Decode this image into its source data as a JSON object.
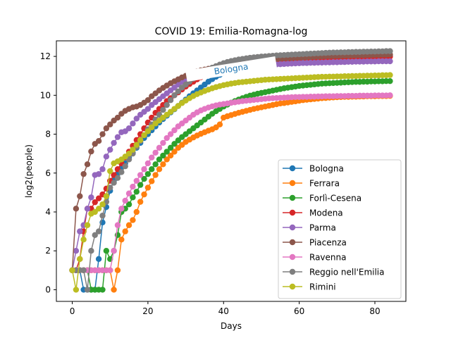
{
  "chart_data": {
    "type": "line",
    "title": "COVID 19: Emilia-Romagna-log",
    "xlabel": "Days",
    "ylabel": "log2(people)",
    "xlim": [
      -4.2,
      88.2
    ],
    "ylim": [
      -0.6,
      12.8
    ],
    "xticks": [
      0,
      20,
      40,
      60,
      80
    ],
    "yticks": [
      0,
      2,
      4,
      6,
      8,
      10,
      12
    ],
    "grid": false,
    "legend_position": "lower-right",
    "annotation": {
      "text": "Bologna",
      "x": 42,
      "y": 11.35,
      "rotation": -9,
      "color": "#1f77b4"
    },
    "series": [
      {
        "name": "Bologna",
        "color": "#1f77b4",
        "start": 0,
        "values": [
          1,
          1,
          1,
          0,
          0,
          0,
          0,
          1.58,
          3.46,
          4.25,
          5.09,
          5.61,
          5.95,
          6.27,
          6.5,
          6.8,
          7.05,
          7.3,
          7.55,
          7.8,
          8.0,
          8.2,
          8.4,
          8.6,
          8.78,
          8.95,
          9.12,
          9.28,
          9.45,
          9.62,
          9.78,
          9.95,
          10.1,
          10.25,
          10.4,
          10.55,
          10.7,
          10.83,
          10.95,
          11.05,
          11.15,
          11.23,
          11.3,
          11.37,
          11.43,
          11.48,
          11.52,
          11.56,
          11.6,
          11.63,
          11.66,
          11.69,
          11.72,
          11.75,
          11.77,
          11.79,
          11.81,
          11.83,
          11.85,
          11.86,
          11.88,
          11.89,
          11.9,
          11.91,
          11.92,
          11.93,
          11.94,
          11.95,
          11.96,
          11.97,
          11.98,
          11.99,
          12.0,
          12.0,
          12.01,
          12.02,
          12.02,
          12.03,
          12.03,
          12.04,
          12.04,
          12.05,
          12.05,
          12.06,
          12.06
        ]
      },
      {
        "name": "Ferrara",
        "color": "#ff7f0e",
        "start": 0,
        "values": [
          1,
          1,
          1,
          1,
          1,
          1,
          1,
          1,
          1,
          1,
          1,
          0,
          1,
          2.58,
          3.0,
          3.32,
          3.58,
          4.0,
          4.52,
          4.9,
          5.25,
          5.58,
          5.9,
          6.2,
          6.45,
          6.7,
          6.9,
          7.1,
          7.3,
          7.45,
          7.6,
          7.72,
          7.83,
          7.93,
          8.02,
          8.1,
          8.18,
          8.25,
          8.35,
          8.5,
          8.85,
          8.92,
          8.98,
          9.04,
          9.1,
          9.15,
          9.2,
          9.25,
          9.3,
          9.34,
          9.38,
          9.42,
          9.46,
          9.5,
          9.54,
          9.58,
          9.6,
          9.63,
          9.66,
          9.69,
          9.72,
          9.75,
          9.77,
          9.79,
          9.81,
          9.83,
          9.85,
          9.86,
          9.88,
          9.89,
          9.9,
          9.91,
          9.92,
          9.92,
          9.93,
          9.93,
          9.94,
          9.94,
          9.95,
          9.95,
          9.95,
          9.96,
          9.96,
          9.96,
          9.97
        ]
      },
      {
        "name": "Forlì-Cesena",
        "color": "#2ca02c",
        "start": 0,
        "values": [
          1,
          1,
          1,
          1,
          1,
          0,
          0,
          0,
          0,
          2.0,
          1.58,
          2.0,
          2.81,
          4.0,
          4.17,
          4.39,
          4.75,
          5.04,
          5.39,
          5.7,
          5.95,
          6.2,
          6.45,
          6.7,
          6.9,
          7.1,
          7.3,
          7.5,
          7.68,
          7.85,
          8.0,
          8.15,
          8.3,
          8.45,
          8.6,
          8.75,
          8.9,
          9.05,
          9.18,
          9.3,
          9.42,
          9.52,
          9.62,
          9.7,
          9.78,
          9.85,
          9.92,
          9.98,
          10.03,
          10.08,
          10.12,
          10.16,
          10.2,
          10.24,
          10.28,
          10.32,
          10.36,
          10.39,
          10.42,
          10.45,
          10.48,
          10.5,
          10.52,
          10.54,
          10.56,
          10.58,
          10.6,
          10.61,
          10.62,
          10.63,
          10.64,
          10.65,
          10.66,
          10.67,
          10.68,
          10.69,
          10.69,
          10.7,
          10.7,
          10.71,
          10.71,
          10.72,
          10.72,
          10.73,
          10.73
        ]
      },
      {
        "name": "Modena",
        "color": "#d62728",
        "start": 0,
        "values": [
          1,
          1,
          1.58,
          3.0,
          4.17,
          4.17,
          4.5,
          4.7,
          4.9,
          5.2,
          5.6,
          5.9,
          6.2,
          6.5,
          6.8,
          7.1,
          7.4,
          7.7,
          8.0,
          8.3,
          8.6,
          8.85,
          9.1,
          9.3,
          9.5,
          9.7,
          9.85,
          10.0,
          10.15,
          10.3,
          10.45,
          10.58,
          10.7,
          10.82,
          10.93,
          11.03,
          11.12,
          11.2,
          11.27,
          11.34,
          11.4,
          11.45,
          11.5,
          11.54,
          11.58,
          11.62,
          11.65,
          11.68,
          11.71,
          11.73,
          11.75,
          11.77,
          11.79,
          11.8,
          11.81,
          11.82,
          11.83,
          11.84,
          11.85,
          11.86,
          11.87,
          11.87,
          11.88,
          11.88,
          11.89,
          11.89,
          11.9,
          11.9,
          11.91,
          11.91,
          11.92,
          11.92,
          11.93,
          11.93,
          11.94,
          11.94,
          11.95,
          11.95,
          11.96,
          11.96,
          11.97,
          11.97,
          11.98,
          11.98,
          11.99
        ]
      },
      {
        "name": "Parma",
        "color": "#9467bd",
        "start": 0,
        "values": [
          1,
          2.0,
          3.0,
          3.32,
          4.17,
          4.75,
          5.9,
          5.95,
          6.2,
          6.85,
          7.2,
          7.55,
          7.85,
          8.1,
          8.15,
          8.3,
          8.55,
          8.8,
          9.0,
          9.15,
          9.3,
          9.5,
          9.65,
          9.8,
          9.95,
          10.1,
          10.25,
          10.4,
          10.55,
          10.7,
          10.83,
          10.95,
          11.05,
          11.12,
          11.18,
          11.23,
          11.28,
          11.32,
          11.35,
          11.38,
          11.4,
          11.42,
          11.44,
          11.46,
          11.48,
          11.5,
          11.51,
          11.52,
          11.53,
          11.54,
          11.55,
          11.56,
          11.57,
          11.58,
          11.59,
          11.6,
          11.61,
          11.62,
          11.63,
          11.64,
          11.65,
          11.66,
          11.66,
          11.67,
          11.67,
          11.68,
          11.68,
          11.69,
          11.69,
          11.7,
          11.7,
          11.71,
          11.71,
          11.72,
          11.72,
          11.73,
          11.73,
          11.73,
          11.74,
          11.74,
          11.74,
          11.75,
          11.75,
          11.75,
          11.75
        ]
      },
      {
        "name": "Piacenza",
        "color": "#8c564b",
        "start": 0,
        "values": [
          1,
          4.17,
          4.81,
          5.95,
          6.45,
          7.11,
          7.5,
          7.65,
          8.0,
          8.3,
          8.5,
          8.7,
          8.85,
          9.05,
          9.2,
          9.3,
          9.38,
          9.42,
          9.5,
          9.62,
          9.75,
          9.95,
          10.1,
          10.25,
          10.38,
          10.5,
          10.62,
          10.72,
          10.82,
          10.92,
          11.0,
          11.08,
          11.15,
          11.22,
          11.28,
          11.32,
          11.36,
          11.4,
          11.43,
          11.46,
          11.49,
          11.52,
          11.55,
          11.58,
          11.61,
          11.64,
          11.67,
          11.7,
          11.73,
          11.76,
          11.79,
          11.81,
          11.83,
          11.85,
          11.87,
          11.89,
          11.9,
          11.91,
          11.92,
          11.93,
          11.94,
          11.95,
          11.96,
          11.97,
          11.98,
          11.99,
          12.0,
          12.01,
          12.02,
          12.02,
          12.03,
          12.03,
          12.04,
          12.04,
          12.05,
          12.05,
          12.06,
          12.06,
          12.07,
          12.07,
          12.08,
          12.08,
          12.09,
          12.09,
          12.1
        ]
      },
      {
        "name": "Ravenna",
        "color": "#e377c2",
        "start": 0,
        "values": [
          1,
          1,
          1,
          1,
          1,
          1,
          1,
          1,
          1,
          1,
          1,
          2.0,
          3.32,
          4.17,
          4.58,
          4.95,
          5.3,
          5.6,
          5.9,
          6.2,
          6.5,
          6.8,
          7.05,
          7.3,
          7.55,
          7.8,
          8.0,
          8.2,
          8.4,
          8.55,
          8.7,
          8.85,
          9.0,
          9.12,
          9.22,
          9.3,
          9.37,
          9.43,
          9.48,
          9.52,
          9.55,
          9.58,
          9.61,
          9.64,
          9.67,
          9.7,
          9.72,
          9.74,
          9.76,
          9.78,
          9.8,
          9.82,
          9.84,
          9.85,
          9.86,
          9.87,
          9.88,
          9.89,
          9.9,
          9.91,
          9.91,
          9.92,
          9.92,
          9.93,
          9.93,
          9.94,
          9.94,
          9.95,
          9.95,
          9.95,
          9.96,
          9.96,
          9.96,
          9.97,
          9.97,
          9.97,
          9.98,
          9.98,
          9.98,
          9.98,
          9.99,
          9.99,
          9.99,
          9.99,
          10.0
        ]
      },
      {
        "name": "Reggio nell'Emilia",
        "color": "#7f7f7f",
        "start": 0,
        "values": [
          1,
          1,
          1,
          1,
          0,
          2.0,
          2.81,
          3.0,
          3.81,
          4.52,
          5.25,
          5.5,
          5.75,
          6.05,
          6.35,
          6.7,
          7.0,
          7.35,
          7.65,
          7.95,
          8.25,
          8.5,
          8.75,
          9.0,
          9.25,
          9.5,
          9.75,
          10.0,
          10.2,
          10.4,
          10.55,
          10.7,
          10.85,
          11.0,
          11.12,
          11.22,
          11.32,
          11.42,
          11.5,
          11.58,
          11.65,
          11.71,
          11.76,
          11.8,
          11.84,
          11.87,
          11.9,
          11.93,
          11.95,
          11.97,
          11.99,
          12.0,
          12.02,
          12.03,
          12.05,
          12.06,
          12.07,
          12.08,
          12.09,
          12.1,
          12.11,
          12.12,
          12.13,
          12.14,
          12.15,
          12.16,
          12.17,
          12.18,
          12.19,
          12.2,
          12.2,
          12.21,
          12.21,
          12.22,
          12.22,
          12.23,
          12.23,
          12.24,
          12.24,
          12.25,
          12.25,
          12.26,
          12.26,
          12.27,
          12.27
        ]
      },
      {
        "name": "Rimini",
        "color": "#bcbd22",
        "start": 0,
        "values": [
          1,
          0,
          1.58,
          2.58,
          3.32,
          3.91,
          4.0,
          4.17,
          4.39,
          4.81,
          6.1,
          6.5,
          6.6,
          6.7,
          6.85,
          7.0,
          7.2,
          7.45,
          7.7,
          7.95,
          8.15,
          8.35,
          8.55,
          8.7,
          8.85,
          9.0,
          9.15,
          9.3,
          9.45,
          9.6,
          9.73,
          9.85,
          9.96,
          10.06,
          10.14,
          10.22,
          10.29,
          10.36,
          10.42,
          10.47,
          10.52,
          10.56,
          10.6,
          10.63,
          10.66,
          10.68,
          10.7,
          10.72,
          10.74,
          10.76,
          10.78,
          10.8,
          10.81,
          10.82,
          10.83,
          10.84,
          10.85,
          10.86,
          10.87,
          10.88,
          10.89,
          10.9,
          10.91,
          10.92,
          10.93,
          10.94,
          10.95,
          10.95,
          10.96,
          10.96,
          10.97,
          10.97,
          10.98,
          10.98,
          10.99,
          10.99,
          11.0,
          11.0,
          11.01,
          11.01,
          11.02,
          11.02,
          11.03,
          11.03,
          11.04
        ]
      }
    ]
  }
}
